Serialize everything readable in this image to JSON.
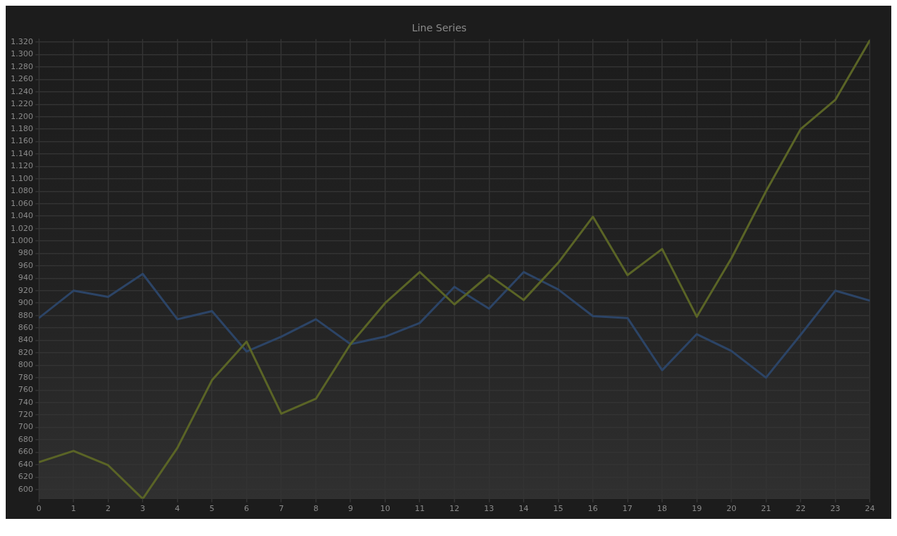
{
  "chart_data": {
    "type": "line",
    "title": "Line Series",
    "x": [
      0,
      1,
      2,
      3,
      4,
      5,
      6,
      7,
      8,
      9,
      10,
      11,
      12,
      13,
      14,
      15,
      16,
      17,
      18,
      19,
      20,
      21,
      22,
      23,
      24
    ],
    "series": [
      {
        "color": "#5a6426",
        "values": [
          644,
          662,
          639,
          585,
          667,
          776,
          838,
          722,
          746,
          834,
          900,
          950,
          898,
          945,
          905,
          965,
          1039,
          945,
          987,
          878,
          972,
          1080,
          1180,
          1227,
          1323
        ]
      },
      {
        "color": "#2c4466",
        "values": [
          876,
          920,
          910,
          947,
          874,
          887,
          822,
          846,
          874,
          834,
          846,
          868,
          926,
          891,
          950,
          922,
          879,
          876,
          792,
          850,
          823,
          780,
          849,
          920,
          904
        ]
      }
    ],
    "xlim": [
      0,
      24
    ],
    "xticks": [
      0,
      1,
      2,
      3,
      4,
      5,
      6,
      7,
      8,
      9,
      10,
      11,
      12,
      13,
      14,
      15,
      16,
      17,
      18,
      19,
      20,
      21,
      22,
      23,
      24
    ],
    "ylim": [
      585,
      1325
    ],
    "yticks": [
      600,
      620,
      640,
      660,
      680,
      700,
      720,
      740,
      760,
      780,
      800,
      820,
      840,
      860,
      880,
      900,
      920,
      940,
      960,
      980,
      {
        "value": 1000,
        "label": "1.000"
      },
      {
        "value": 1020,
        "label": "1.020"
      },
      {
        "value": 1040,
        "label": "1.040"
      },
      {
        "value": 1060,
        "label": "1.060"
      },
      {
        "value": 1080,
        "label": "1.080"
      },
      {
        "value": 1100,
        "label": "1.100"
      },
      {
        "value": 1120,
        "label": "1.120"
      },
      {
        "value": 1140,
        "label": "1.140"
      },
      {
        "value": 1160,
        "label": "1.160"
      },
      {
        "value": 1180,
        "label": "1.180"
      },
      {
        "value": 1200,
        "label": "1.200"
      },
      {
        "value": 1220,
        "label": "1.220"
      },
      {
        "value": 1240,
        "label": "1.240"
      },
      {
        "value": 1260,
        "label": "1.260"
      },
      {
        "value": 1280,
        "label": "1.280"
      },
      {
        "value": 1300,
        "label": "1.300"
      },
      {
        "value": 1320,
        "label": "1.320"
      }
    ],
    "grid": true,
    "legend": false,
    "marker": "none",
    "line_style": "solid"
  }
}
